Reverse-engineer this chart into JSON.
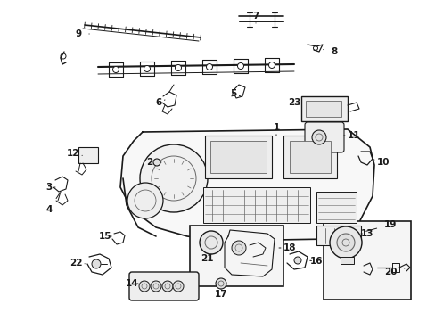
{
  "fig_width": 4.89,
  "fig_height": 3.6,
  "dpi": 100,
  "bg": "#ffffff",
  "dark": "#1a1a1a",
  "gray": "#666666",
  "light": "#f0f0f0",
  "panel_color": "#f5f5f5"
}
